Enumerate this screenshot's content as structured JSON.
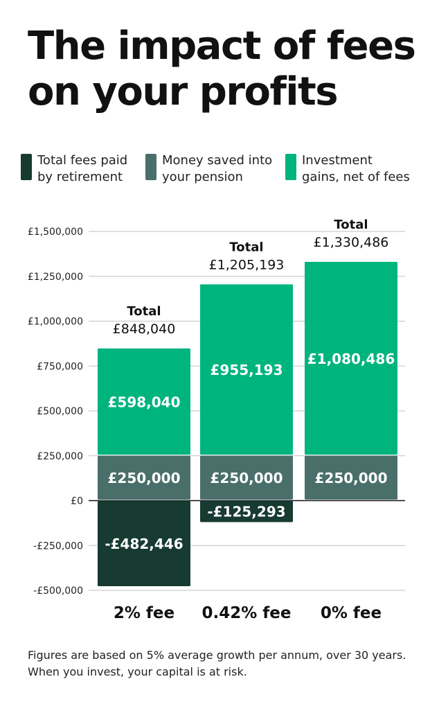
{
  "title": "The impact of fees on your profits",
  "legend": [
    {
      "label": "Total fees paid\nby retirement",
      "color": "#173a31"
    },
    {
      "label": "Money saved into\nyour pension",
      "color": "#4a6f6a"
    },
    {
      "label": "Investment\ngains, net of fees",
      "color": "#00b47e"
    }
  ],
  "chart_data": {
    "type": "bar",
    "stacked": true,
    "categories": [
      "2% fee",
      "0.42% fee",
      "0% fee"
    ],
    "series": [
      {
        "name": "Total fees paid by retirement",
        "color": "#173a31",
        "values": [
          -482446,
          -125293,
          0
        ]
      },
      {
        "name": "Money saved into your pension",
        "color": "#4a6f6a",
        "values": [
          250000,
          250000,
          250000
        ]
      },
      {
        "name": "Investment gains, net of fees",
        "color": "#00b47e",
        "values": [
          598040,
          955193,
          1080486
        ]
      }
    ],
    "value_labels": [
      [
        "-£482,446",
        "£250,000",
        "£598,040"
      ],
      [
        "-£125,293",
        "£250,000",
        "£955,193"
      ],
      [
        "",
        "£250,000",
        "£1,080,486"
      ]
    ],
    "totals": [
      "£848,040",
      "£1,205,193",
      "£1,330,486"
    ],
    "total_label": "Total",
    "ylim": [
      -500000,
      1500000
    ],
    "yticks": [
      -500000,
      -250000,
      0,
      250000,
      500000,
      750000,
      1000000,
      1250000,
      1500000
    ],
    "ytick_labels": [
      "-£500,000",
      "-£250,000",
      "£0",
      "£250,000",
      "£500,000",
      "£750,000",
      "£1,000,000",
      "£1,250,000",
      "£1,500,000"
    ],
    "grid": true,
    "legend_position": "top"
  },
  "footnote": "Figures are based on 5% average growth per annum, over 30 years. When you invest, your capital is at risk."
}
